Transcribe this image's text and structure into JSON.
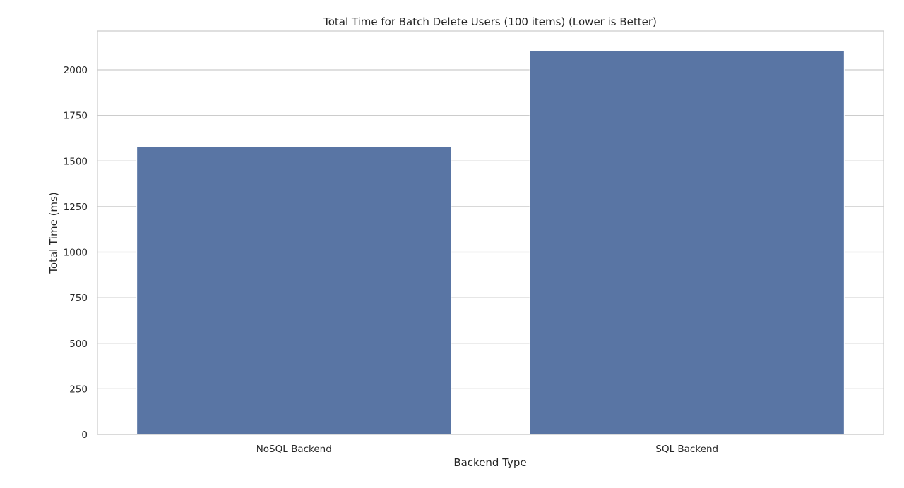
{
  "chart_data": {
    "type": "bar",
    "title": "Total Time for Batch Delete Users (100 items) (Lower is Better)",
    "xlabel": "Backend Type",
    "ylabel": "Total Time (ms)",
    "categories": [
      "NoSQL Backend",
      "SQL Backend"
    ],
    "values": [
      1577,
      2103
    ],
    "ylim": [
      0,
      2213
    ],
    "yticks": [
      0,
      250,
      500,
      750,
      1000,
      1250,
      1500,
      1750,
      2000
    ],
    "grid": true,
    "bar_color": "#5975a4",
    "grid_color": "#cccccc",
    "frame_color": "#cccccc"
  }
}
